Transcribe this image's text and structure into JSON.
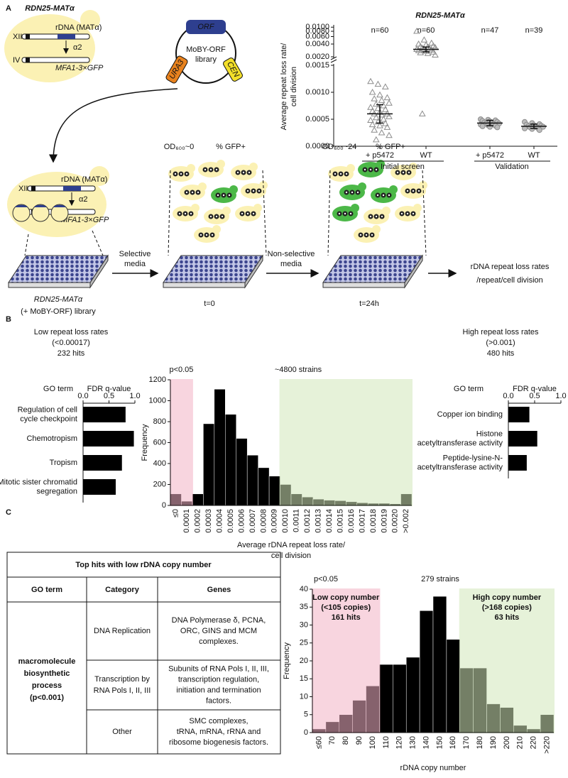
{
  "panel_labels": [
    "A",
    "B",
    "C"
  ],
  "diagram": {
    "strain": "RDN25-MATα",
    "chr12": "XII",
    "rdna": "rDNA (MATα)",
    "alpha2": "α2",
    "chr4": "IV",
    "reporter": "MFA1-3×GFP",
    "orf": "ORF",
    "library": [
      "MoBY-ORF",
      "library"
    ],
    "ura3": "URA3",
    "cen": "CEN",
    "od0": "OD₆₀₀~0",
    "gfp": "% GFP+",
    "od24": "OD₆₀₀~24",
    "step1": [
      "Selective",
      "media"
    ],
    "step2": [
      "Non-selective",
      "media"
    ],
    "t0": "t=0",
    "t24": "t=24h",
    "library_label": [
      "RDN25-MATα",
      "(+ MoBY-ORF) library"
    ],
    "result": [
      "rDNA repeat loss rates",
      "/repeat/cell division"
    ]
  },
  "chart_data": [
    {
      "type": "dot",
      "title": "RDN25-MATα",
      "y_label": [
        "Average repeat loss rate/",
        "cell division"
      ],
      "categories": [
        "+ p5472",
        "WT",
        "+ p5472",
        "WT"
      ],
      "groups": [
        "Initial screen",
        "Validation"
      ],
      "annotations": [
        "n=60",
        "n=60",
        "n=47",
        "n=39"
      ],
      "markers": [
        "triangle",
        "triangle",
        "circle",
        "circle"
      ],
      "centers": [
        0.0006,
        0.003,
        0.00043,
        0.00037
      ],
      "errors": [
        0.00017,
        0.0004,
        5e-05,
        4e-05
      ],
      "points": [
        [
          0.0012,
          0.00115,
          0.0011,
          0.001,
          0.00095,
          0.0009,
          0.00088,
          0.00085,
          0.0008,
          0.00078,
          0.00075,
          0.00072,
          0.0007,
          0.00068,
          0.00065,
          0.00063,
          0.0006,
          0.0006,
          0.00058,
          0.00055,
          0.00053,
          0.0005,
          0.00048,
          0.00045,
          0.00042,
          0.0004,
          0.00038,
          0.00035,
          0.0003,
          0.00025,
          0.0002,
          0.00012
        ],
        [
          0.008,
          0.005,
          0.0042,
          0.004,
          0.0038,
          0.0036,
          0.0035,
          0.0034,
          0.0033,
          0.0032,
          0.0031,
          0.003,
          0.003,
          0.0029,
          0.0028,
          0.0027,
          0.0026,
          0.0025,
          0.0024,
          0.0022,
          0.0006
        ],
        [
          0.0005,
          0.00049,
          0.00048,
          0.00047,
          0.00046,
          0.00045,
          0.00044,
          0.00043,
          0.00042,
          0.00042,
          0.00041,
          0.0004,
          0.00039,
          0.00038,
          0.00037,
          0.00036,
          0.00035
        ],
        [
          0.00045,
          0.00043,
          0.00041,
          0.0004,
          0.00039,
          0.00038,
          0.00037,
          0.00036,
          0.00036,
          0.00035,
          0.00034,
          0.00033,
          0.00032,
          0.0003
        ]
      ],
      "ylim": [
        0,
        0.0015
      ],
      "yticks": [
        {
          "value": 0,
          "label": "0.0000"
        },
        {
          "value": 0.0005,
          "label": "0.0005"
        },
        {
          "value": 0.001,
          "label": "0.0010"
        },
        {
          "value": 0.0015,
          "label": "0.0015"
        }
      ],
      "y2lim": [
        0.002,
        0.0105
      ],
      "y2log": true,
      "y2ticks": [
        {
          "value": 0.002,
          "label": "0.0020"
        },
        {
          "value": 0.004,
          "label": "0.0040"
        },
        {
          "value": 0.006,
          "label": "0.0060"
        },
        {
          "value": 0.008,
          "label": "0.0080"
        },
        {
          "value": 0.01,
          "label": "0.0100"
        }
      ],
      "color": "#8c8c8c"
    },
    {
      "type": "hbar",
      "title": [
        "Low repeat loss rates",
        "(<0.00017)",
        "232 hits"
      ],
      "y_label": "GO term",
      "x_label": "FDR q-value",
      "categories": [
        [
          "Regulation of cell",
          "cycle checkpoint"
        ],
        [
          "Chemotropism"
        ],
        [
          "Tropism"
        ],
        [
          "Mitotic sister chromatid",
          "segregation"
        ]
      ],
      "values": [
        0.82,
        0.98,
        0.75,
        0.63
      ],
      "color": "#000000",
      "xlim": [
        0,
        1
      ],
      "xticks": [
        {
          "value": 0,
          "label": "0.0"
        },
        {
          "value": 0.5,
          "label": "0.5"
        },
        {
          "value": 1,
          "label": "1.0"
        }
      ]
    },
    {
      "type": "bar",
      "subtitle": "~4800 strains",
      "x_label": [
        "Average rDNA repeat loss rate/",
        "cell division"
      ],
      "y_label": "Frequency",
      "categories": [
        "≤0",
        "0.0001",
        "0.0002",
        "0.0003",
        "0.0004",
        "0.0005",
        "0.0006",
        "0.0007",
        "0.0008",
        "0.0009",
        "0.0010",
        "0.0011",
        "0.0012",
        "0.0013",
        "0.0014",
        "0.0015",
        "0.0016",
        "0.0017",
        "0.0018",
        "0.0019",
        "0.0020",
        ">0.002"
      ],
      "values": [
        110,
        40,
        110,
        780,
        1110,
        870,
        640,
        480,
        360,
        280,
        200,
        110,
        80,
        60,
        50,
        45,
        35,
        25,
        20,
        20,
        15,
        110
      ],
      "color": "#000000",
      "ylim": [
        0,
        1200
      ],
      "yticks": [
        0,
        200,
        400,
        600,
        800,
        1000,
        1200
      ],
      "regions": [
        {
          "label": [
            "p<0.05"
          ],
          "color": "#f4b3c6",
          "span": [
            0,
            1
          ]
        },
        {
          "label": [],
          "color": "#d3e8bb",
          "span": [
            10,
            21
          ]
        }
      ]
    },
    {
      "type": "hbar",
      "title": [
        "High repeat loss rates",
        "(>0.001)",
        "480 hits"
      ],
      "y_label": "GO term",
      "x_label": "FDR q-value",
      "categories": [
        [
          "Copper ion binding"
        ],
        [
          "Histone",
          "acetyltransferase activity"
        ],
        [
          "Peptide-lysine-N-",
          "acetyltransferase activity"
        ]
      ],
      "values": [
        0.4,
        0.55,
        0.35
      ],
      "color": "#000000",
      "xlim": [
        0,
        1
      ],
      "xticks": [
        {
          "value": 0,
          "label": "0.0"
        },
        {
          "value": 0.5,
          "label": "0.5"
        },
        {
          "value": 1,
          "label": "1.0"
        }
      ]
    },
    {
      "type": "bar",
      "subtitle": "279 strains",
      "annotation": "p<0.05",
      "x_label": [
        "rDNA copy number"
      ],
      "y_label": "Frequency",
      "categories": [
        "≤60",
        "70",
        "80",
        "90",
        "100",
        "110",
        "120",
        "130",
        "140",
        "150",
        "160",
        "170",
        "180",
        "190",
        "200",
        "210",
        "220",
        ">220"
      ],
      "values": [
        1,
        3,
        5,
        9,
        13,
        19,
        19,
        21,
        34,
        38,
        26,
        18,
        18,
        8,
        7,
        2,
        1,
        5
      ],
      "color": "#000000",
      "ylim": [
        0,
        40
      ],
      "yticks": [
        0,
        5,
        10,
        15,
        20,
        25,
        30,
        35,
        40
      ],
      "regions": [
        {
          "label": [
            "Low copy number",
            "(<105 copies)",
            "161 hits"
          ],
          "color": "#f4b3c6",
          "span": [
            0,
            4
          ]
        },
        {
          "label": [
            "High copy number",
            "(>168 copies)",
            "63 hits"
          ],
          "color": "#d3e8bb",
          "span": [
            11,
            17
          ]
        }
      ]
    }
  ],
  "table": {
    "title": "Top hits with low rDNA copy number",
    "header": [
      "GO term",
      "Category",
      "Genes"
    ],
    "go_term": [
      "macromolecule",
      "biosynthetic",
      "process",
      "(p<0.001)"
    ],
    "rows": [
      {
        "category": [
          "DNA Replication"
        ],
        "genes": [
          "DNA Polymerase δ, PCNA,",
          "ORC, GINS and MCM",
          "complexes."
        ]
      },
      {
        "category": [
          "Transcription by",
          "RNA Pols I, II, III"
        ],
        "genes": [
          "Subunits of RNA Pols I, II, III,",
          "transcription regulation,",
          "initiation and termination",
          "factors."
        ]
      },
      {
        "category": [
          "Other"
        ],
        "genes": [
          "SMC complexes,",
          "tRNA, mRNA, rRNA and",
          "ribosome biogenesis factors."
        ]
      }
    ]
  }
}
